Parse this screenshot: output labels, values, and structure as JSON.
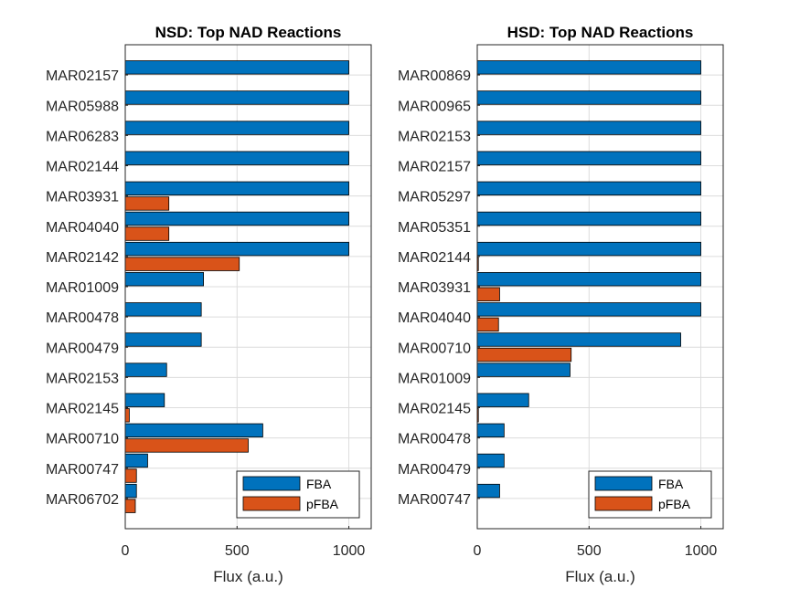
{
  "chart_data": [
    {
      "type": "bar",
      "orientation": "horizontal",
      "title": "NSD: Top NAD Reactions",
      "xlabel": "Flux (a.u.)",
      "ylabel": "",
      "xlim": [
        0,
        1100
      ],
      "xticks": [
        0,
        500,
        1000
      ],
      "grid": true,
      "legend_position": "bottom-right",
      "categories": [
        "MAR02157",
        "MAR05988",
        "MAR06283",
        "MAR02144",
        "MAR03931",
        "MAR04040",
        "MAR02142",
        "MAR01009",
        "MAR00478",
        "MAR00479",
        "MAR02153",
        "MAR02145",
        "MAR00710",
        "MAR00747",
        "MAR06702"
      ],
      "series": [
        {
          "name": "FBA",
          "color": "#0072BD",
          "values": [
            1000,
            1000,
            1000,
            1000,
            1000,
            1000,
            1000,
            350,
            340,
            340,
            185,
            175,
            615,
            100,
            50
          ]
        },
        {
          "name": "pFBA",
          "color": "#D95319",
          "values": [
            0,
            0,
            0,
            0,
            195,
            195,
            510,
            0,
            0,
            0,
            0,
            18,
            550,
            50,
            45
          ]
        }
      ]
    },
    {
      "type": "bar",
      "orientation": "horizontal",
      "title": "HSD: Top NAD Reactions",
      "xlabel": "Flux (a.u.)",
      "ylabel": "",
      "xlim": [
        0,
        1100
      ],
      "xticks": [
        0,
        500,
        1000
      ],
      "grid": true,
      "legend_position": "bottom-right",
      "categories": [
        "MAR00869",
        "MAR00965",
        "MAR02153",
        "MAR02157",
        "MAR05297",
        "MAR05351",
        "MAR02144",
        "MAR03931",
        "MAR04040",
        "MAR00710",
        "MAR01009",
        "MAR02145",
        "MAR00478",
        "MAR00479",
        "MAR00747"
      ],
      "series": [
        {
          "name": "FBA",
          "color": "#0072BD",
          "values": [
            1000,
            1000,
            1000,
            1000,
            1000,
            1000,
            1000,
            1000,
            1000,
            910,
            415,
            230,
            120,
            120,
            100
          ]
        },
        {
          "name": "pFBA",
          "color": "#D95319",
          "values": [
            0,
            0,
            0,
            0,
            0,
            0,
            5,
            100,
            95,
            420,
            0,
            5,
            0,
            0,
            0
          ]
        }
      ]
    }
  ]
}
